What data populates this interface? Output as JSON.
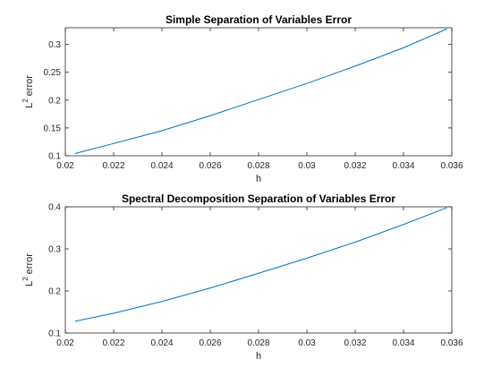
{
  "chart_data": [
    {
      "type": "line",
      "title": "Simple Separation of Variables Error",
      "xlabel": "h",
      "ylabel": "error",
      "ylabel_prefix": "L",
      "ylabel_superscript": "2",
      "xlim": [
        0.02,
        0.036
      ],
      "ylim": [
        0.1,
        0.33
      ],
      "xticks": [
        0.02,
        0.022,
        0.024,
        0.026,
        0.028,
        0.03,
        0.032,
        0.034,
        0.036
      ],
      "xtick_labels": [
        "0.02",
        "0.022",
        "0.024",
        "0.026",
        "0.028",
        "0.03",
        "0.032",
        "0.034",
        "0.036"
      ],
      "yticks": [
        0.1,
        0.15,
        0.2,
        0.25,
        0.3
      ],
      "ytick_labels": [
        "0.1",
        "0.15",
        "0.2",
        "0.25",
        "0.3"
      ],
      "grid": false,
      "series": [
        {
          "color": "#0072BD",
          "x": [
            0.0204,
            0.022,
            0.024,
            0.026,
            0.028,
            0.03,
            0.032,
            0.034,
            0.0358
          ],
          "y": [
            0.104,
            0.122,
            0.145,
            0.172,
            0.201,
            0.23,
            0.261,
            0.294,
            0.328
          ]
        }
      ]
    },
    {
      "type": "line",
      "title": "Spectral Decomposition Separation of Variables Error",
      "xlabel": "h",
      "ylabel": "error",
      "ylabel_prefix": "L",
      "ylabel_superscript": "2",
      "xlim": [
        0.02,
        0.036
      ],
      "ylim": [
        0.1,
        0.4
      ],
      "xticks": [
        0.02,
        0.022,
        0.024,
        0.026,
        0.028,
        0.03,
        0.032,
        0.034,
        0.036
      ],
      "xtick_labels": [
        "0.02",
        "0.022",
        "0.024",
        "0.026",
        "0.028",
        "0.03",
        "0.032",
        "0.034",
        "0.036"
      ],
      "yticks": [
        0.1,
        0.2,
        0.3,
        0.4
      ],
      "ytick_labels": [
        "0.1",
        "0.2",
        "0.3",
        "0.4"
      ],
      "grid": false,
      "series": [
        {
          "color": "#0072BD",
          "x": [
            0.0204,
            0.022,
            0.024,
            0.026,
            0.028,
            0.03,
            0.032,
            0.034,
            0.0358
          ],
          "y": [
            0.128,
            0.147,
            0.175,
            0.207,
            0.242,
            0.278,
            0.316,
            0.358,
            0.398
          ]
        }
      ]
    }
  ]
}
